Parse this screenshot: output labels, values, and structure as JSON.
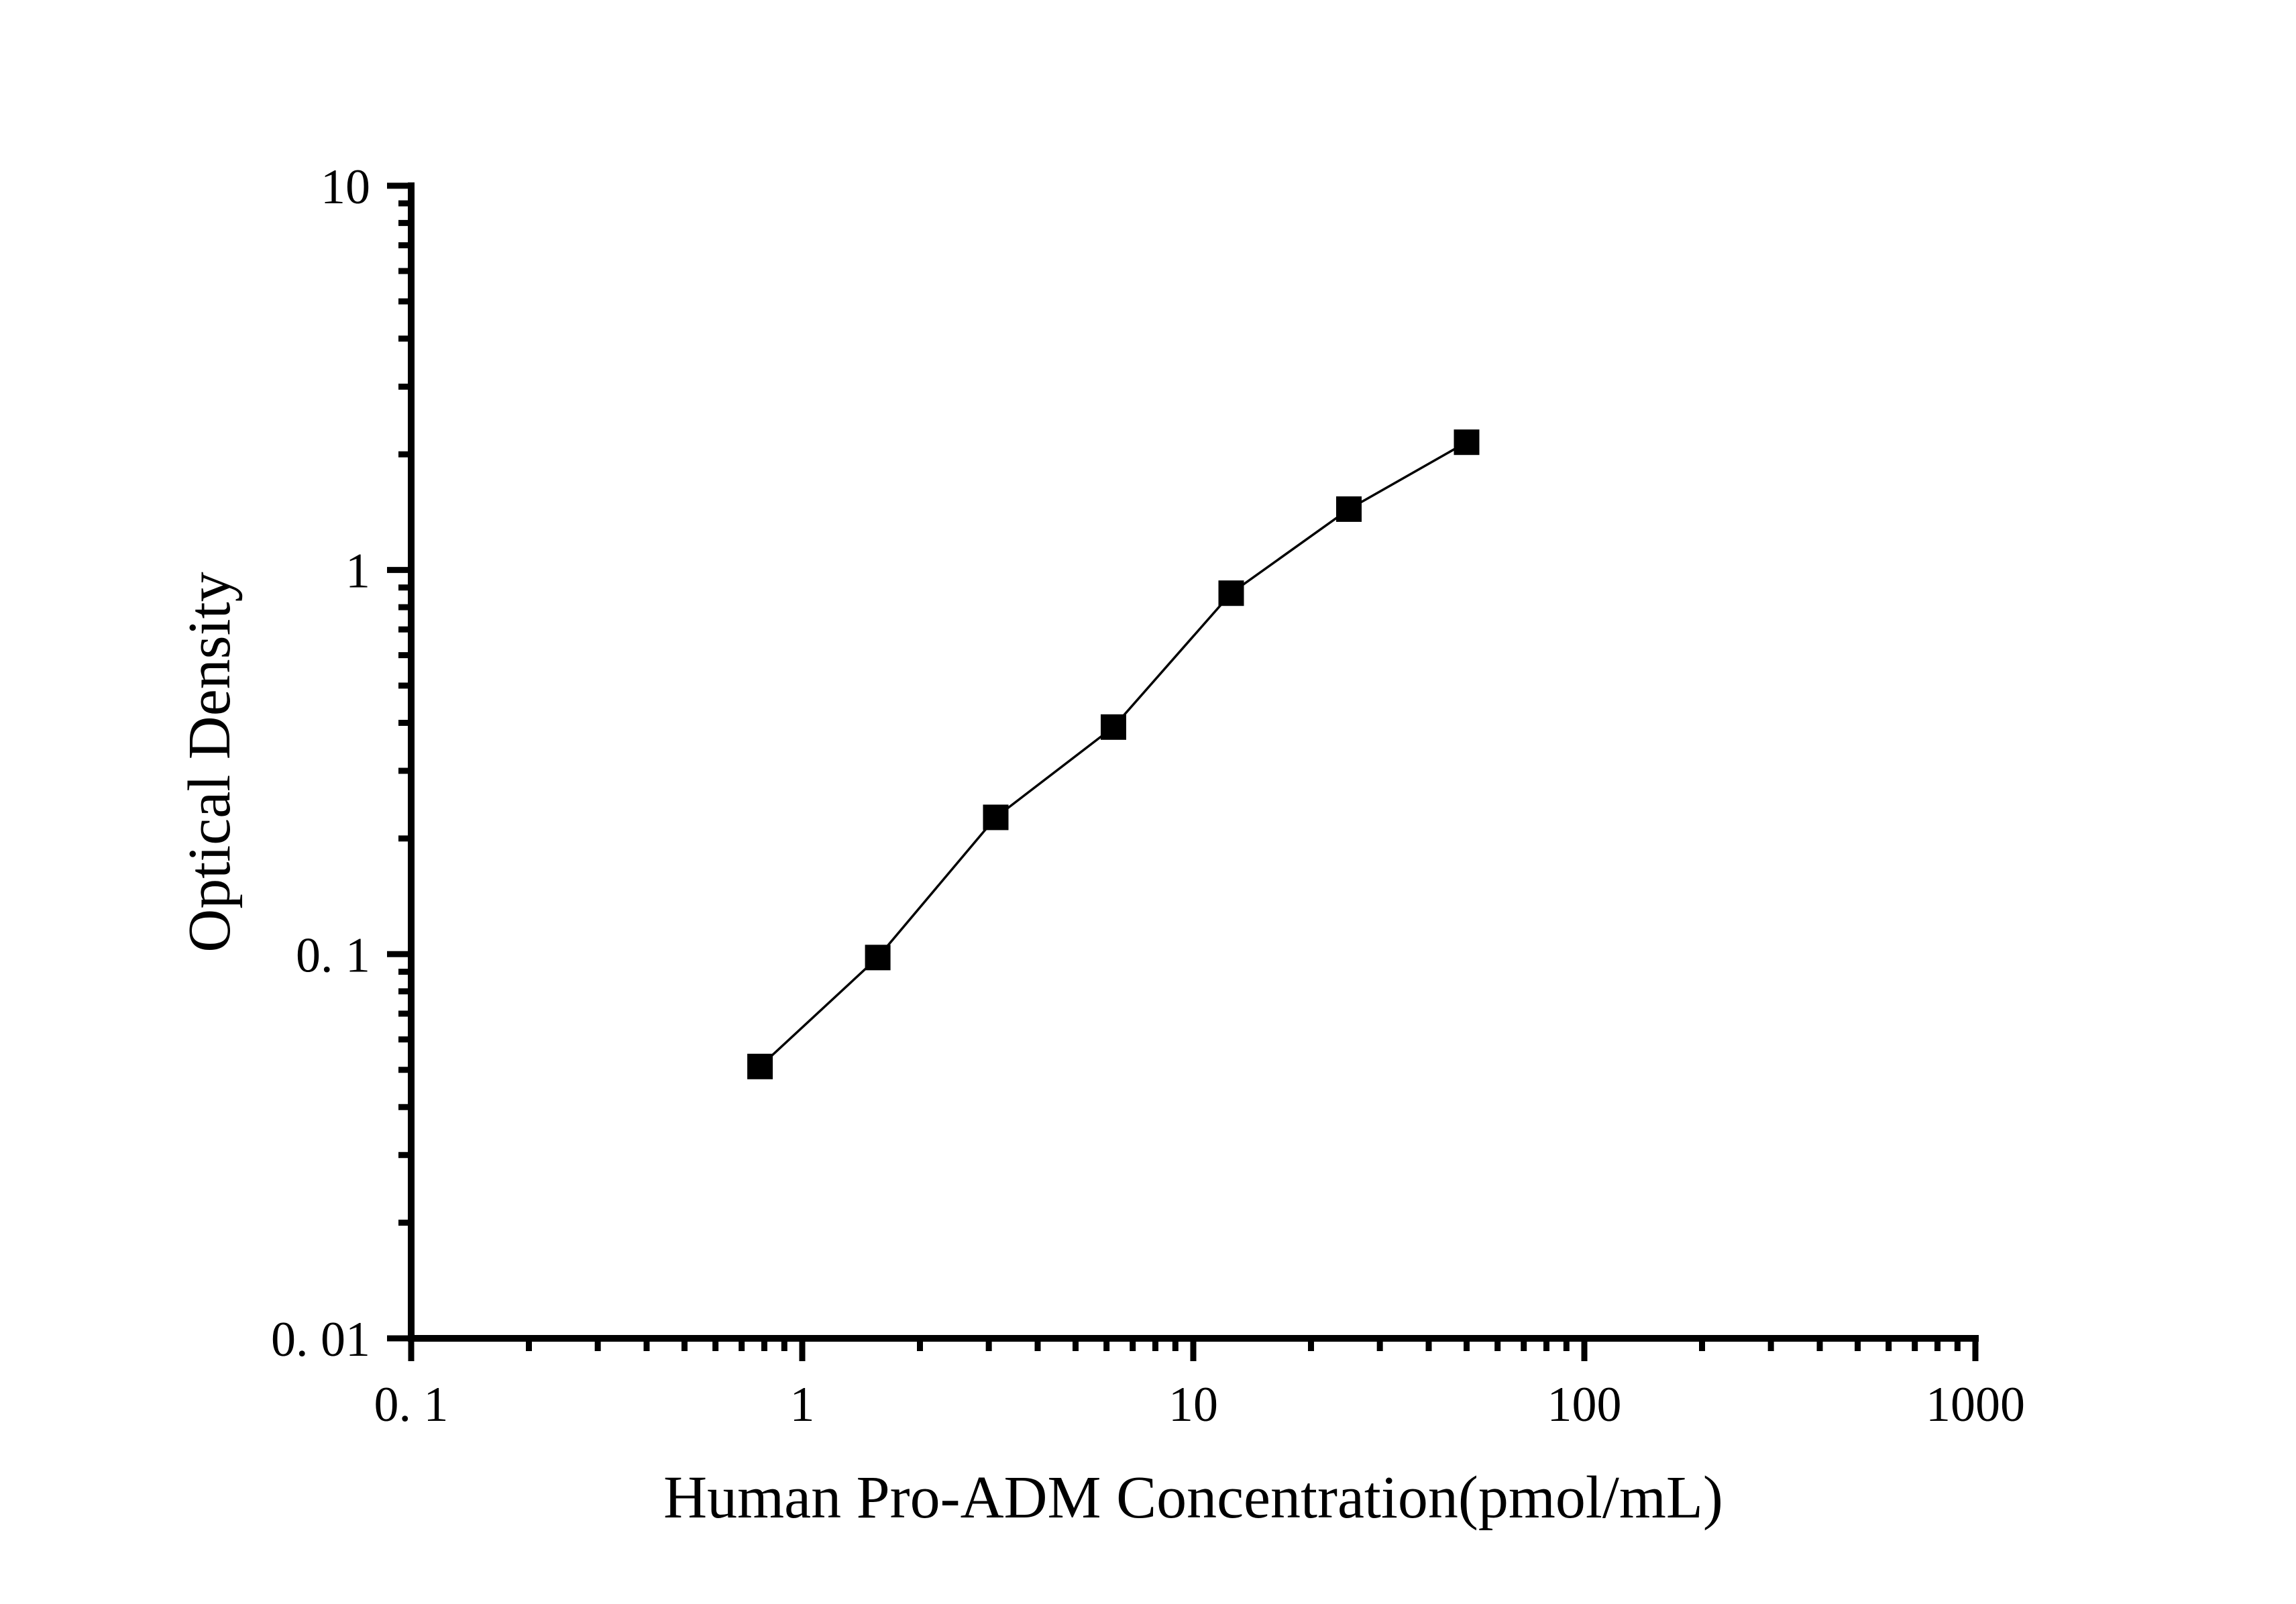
{
  "figure": {
    "background_color": "#ffffff",
    "ink_color": "#000000",
    "x_axis": {
      "title": "Human Pro-ADM Concentration(pmol/mL)",
      "tick_labels": [
        "0. 1",
        "1",
        "10",
        "100",
        "1000"
      ],
      "tick_values": [
        0.1,
        1,
        10,
        100,
        1000
      ],
      "scale": "log"
    },
    "y_axis": {
      "title": "Optical Density",
      "tick_labels": [
        "10",
        "1",
        "0. 1",
        "0. 01"
      ],
      "tick_values": [
        10,
        1,
        0.1,
        0.01
      ],
      "scale": "log"
    },
    "marker_shape": "filled-square",
    "marker_color": "#000000",
    "line_color": "#000000"
  },
  "chart_data": {
    "type": "scatter",
    "title": "",
    "xlabel": "Human Pro-ADM Concentration(pmol/mL)",
    "ylabel": "Optical Density",
    "x_scale": "log",
    "y_scale": "log",
    "xlim": [
      0.1,
      1000
    ],
    "ylim": [
      0.01,
      10
    ],
    "x_ticks": [
      0.1,
      1,
      10,
      100,
      1000
    ],
    "y_ticks": [
      0.01,
      0.1,
      1,
      10
    ],
    "grid": false,
    "legend": "none",
    "series": [
      {
        "name": "standard-curve",
        "marker": "square",
        "color": "#000000",
        "points": [
          [
            0.78,
            0.051
          ],
          [
            1.56,
            0.098
          ],
          [
            3.125,
            0.227
          ],
          [
            6.25,
            0.39
          ],
          [
            12.5,
            0.87
          ],
          [
            25,
            1.44
          ],
          [
            50,
            2.15
          ]
        ]
      }
    ]
  }
}
